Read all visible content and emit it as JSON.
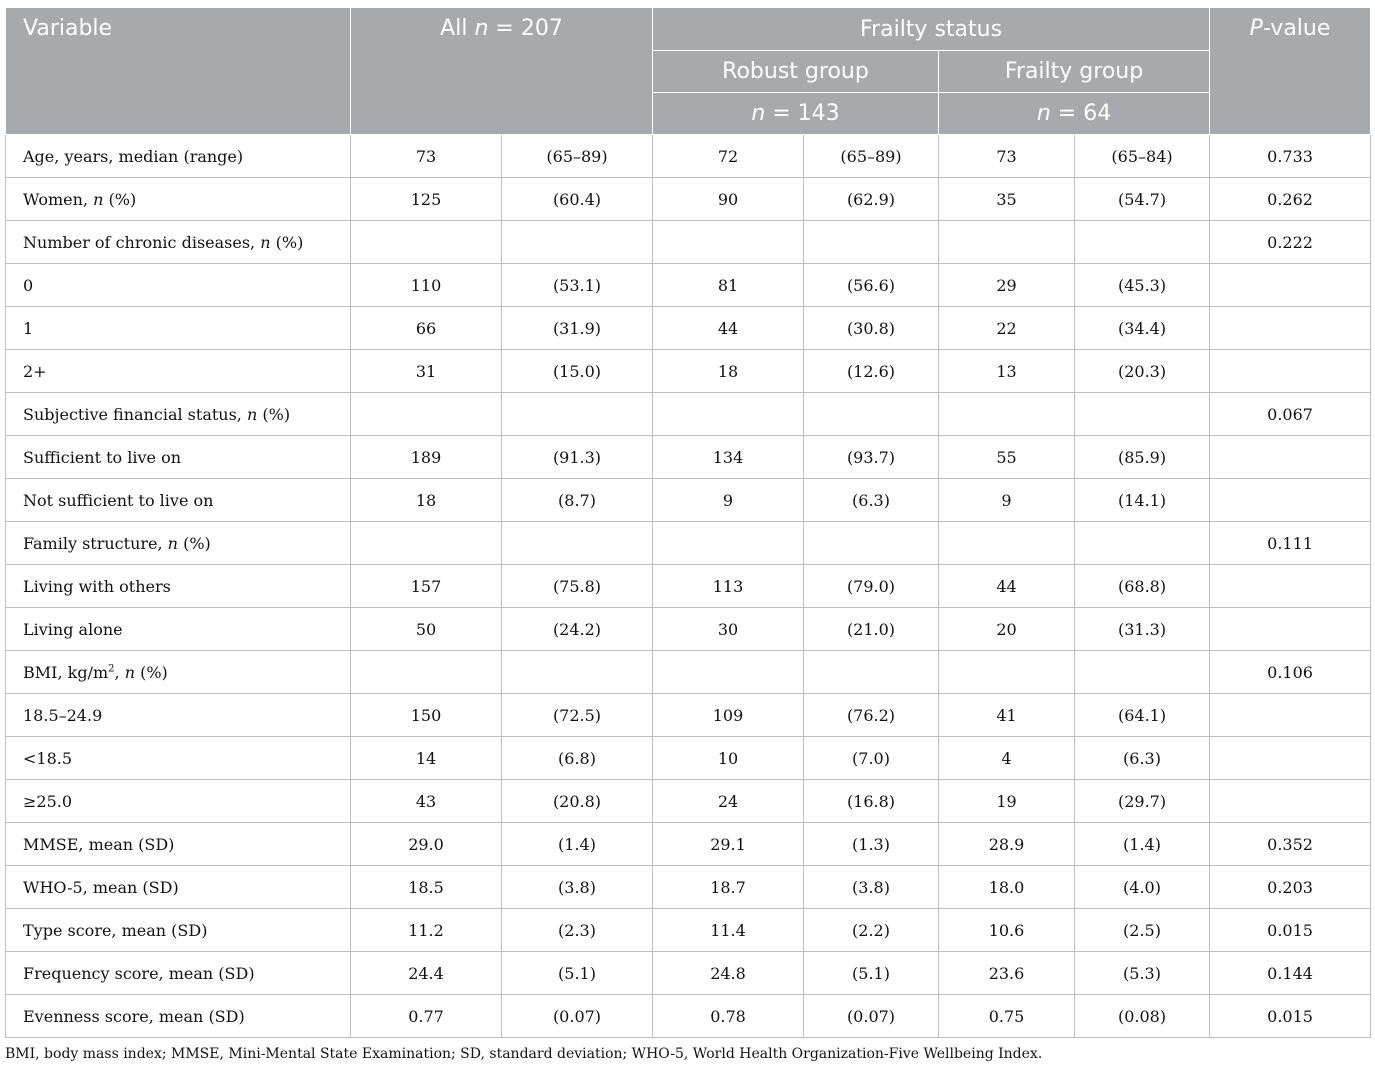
{
  "header": {
    "variable": "Variable",
    "all_prefix": "All",
    "all_n": "n",
    "all_value": " = 207",
    "frailty_status": "Frailty status",
    "p_value_italic": "P",
    "p_value_rest": "-value",
    "robust_group": "Robust group",
    "frailty_group": "Frailty group",
    "robust_n_var": "n",
    "robust_n_value": " = 143",
    "frailty_n_var": "n",
    "frailty_n_value": " = 64"
  },
  "rows": [
    {
      "label": "Age, years, median (range)",
      "all_v": "73",
      "all_p": "(65–89)",
      "rob_v": "72",
      "rob_p": "(65–89)",
      "fr_v": "73",
      "fr_p": "(65–84)",
      "p": "0.733"
    },
    {
      "label_pre": "Women, ",
      "label_n": "n",
      "label_post": " (%)",
      "all_v": "125",
      "all_p": "(60.4)",
      "rob_v": "90",
      "rob_p": "(62.9)",
      "fr_v": "35",
      "fr_p": "(54.7)",
      "p": "0.262"
    },
    {
      "label_pre": "Number of chronic diseases, ",
      "label_n": "n",
      "label_post": " (%)",
      "all_v": "",
      "all_p": "",
      "rob_v": "",
      "rob_p": "",
      "fr_v": "",
      "fr_p": "",
      "p": "0.222"
    },
    {
      "label": "0",
      "all_v": "110",
      "all_p": "(53.1)",
      "rob_v": "81",
      "rob_p": "(56.6)",
      "fr_v": "29",
      "fr_p": "(45.3)",
      "p": ""
    },
    {
      "label": "1",
      "all_v": "66",
      "all_p": "(31.9)",
      "rob_v": "44",
      "rob_p": "(30.8)",
      "fr_v": "22",
      "fr_p": "(34.4)",
      "p": ""
    },
    {
      "label": "2+",
      "all_v": "31",
      "all_p": "(15.0)",
      "rob_v": "18",
      "rob_p": "(12.6)",
      "fr_v": "13",
      "fr_p": "(20.3)",
      "p": ""
    },
    {
      "label_pre": "Subjective financial status, ",
      "label_n": "n",
      "label_post": " (%)",
      "all_v": "",
      "all_p": "",
      "rob_v": "",
      "rob_p": "",
      "fr_v": "",
      "fr_p": "",
      "p": "0.067"
    },
    {
      "label": "Sufficient to live on",
      "all_v": "189",
      "all_p": "(91.3)",
      "rob_v": "134",
      "rob_p": "(93.7)",
      "fr_v": "55",
      "fr_p": "(85.9)",
      "p": ""
    },
    {
      "label": "Not sufficient to live on",
      "all_v": "18",
      "all_p": "(8.7)",
      "rob_v": "9",
      "rob_p": "(6.3)",
      "fr_v": "9",
      "fr_p": "(14.1)",
      "p": ""
    },
    {
      "label_pre": "Family structure, ",
      "label_n": "n",
      "label_post": " (%)",
      "all_v": "",
      "all_p": "",
      "rob_v": "",
      "rob_p": "",
      "fr_v": "",
      "fr_p": "",
      "p": "0.111"
    },
    {
      "label": "Living with others",
      "all_v": "157",
      "all_p": "(75.8)",
      "rob_v": "113",
      "rob_p": "(79.0)",
      "fr_v": "44",
      "fr_p": "(68.8)",
      "p": ""
    },
    {
      "label": "Living alone",
      "all_v": "50",
      "all_p": "(24.2)",
      "rob_v": "30",
      "rob_p": "(21.0)",
      "fr_v": "20",
      "fr_p": "(31.3)",
      "p": ""
    },
    {
      "label_pre": "BMI, kg/m",
      "label_sup": "2",
      "label_mid": ", ",
      "label_n": "n",
      "label_post": " (%)",
      "all_v": "",
      "all_p": "",
      "rob_v": "",
      "rob_p": "",
      "fr_v": "",
      "fr_p": "",
      "p": "0.106"
    },
    {
      "label": "18.5–24.9",
      "all_v": "150",
      "all_p": "(72.5)",
      "rob_v": "109",
      "rob_p": "(76.2)",
      "fr_v": "41",
      "fr_p": "(64.1)",
      "p": ""
    },
    {
      "label": "<18.5",
      "all_v": "14",
      "all_p": "(6.8)",
      "rob_v": "10",
      "rob_p": "(7.0)",
      "fr_v": "4",
      "fr_p": "(6.3)",
      "p": ""
    },
    {
      "label": "≥25.0",
      "all_v": "43",
      "all_p": "(20.8)",
      "rob_v": "24",
      "rob_p": "(16.8)",
      "fr_v": "19",
      "fr_p": "(29.7)",
      "p": ""
    },
    {
      "label": "MMSE, mean (SD)",
      "all_v": "29.0",
      "all_p": "(1.4)",
      "rob_v": "29.1",
      "rob_p": "(1.3)",
      "fr_v": "28.9",
      "fr_p": "(1.4)",
      "p": "0.352"
    },
    {
      "label": "WHO-5, mean (SD)",
      "all_v": "18.5",
      "all_p": "(3.8)",
      "rob_v": "18.7",
      "rob_p": "(3.8)",
      "fr_v": "18.0",
      "fr_p": "(4.0)",
      "p": "0.203"
    },
    {
      "label": "Type score, mean (SD)",
      "all_v": "11.2",
      "all_p": "(2.3)",
      "rob_v": "11.4",
      "rob_p": "(2.2)",
      "fr_v": "10.6",
      "fr_p": "(2.5)",
      "p": "0.015"
    },
    {
      "label": "Frequency score, mean (SD)",
      "all_v": "24.4",
      "all_p": "(5.1)",
      "rob_v": "24.8",
      "rob_p": "(5.1)",
      "fr_v": "23.6",
      "fr_p": "(5.3)",
      "p": "0.144"
    },
    {
      "label": "Evenness score, mean (SD)",
      "all_v": "0.77",
      "all_p": "(0.07)",
      "rob_v": "0.78",
      "rob_p": "(0.07)",
      "fr_v": "0.75",
      "fr_p": "(0.08)",
      "p": "0.015"
    }
  ],
  "footnote": "BMI, body mass index; MMSE, Mini-Mental State Examination; SD, standard deviation; WHO-5, World Health Organization-Five Wellbeing Index."
}
